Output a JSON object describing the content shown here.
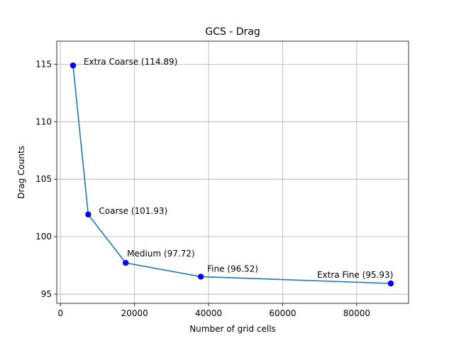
{
  "chart_data": {
    "type": "line",
    "title": "GCS - Drag",
    "xlabel": "Number of grid cells",
    "ylabel": "Drag Counts",
    "xlim": [
      -1000,
      94000
    ],
    "ylim": [
      94.2,
      117
    ],
    "xticks": [
      0,
      20000,
      40000,
      60000,
      80000
    ],
    "yticks": [
      95,
      100,
      105,
      110,
      115
    ],
    "grid": true,
    "line_color": "#1f77b4",
    "marker_color": "#0000ff",
    "series": [
      {
        "x": [
          3400,
          7500,
          17600,
          37900,
          89200
        ],
        "y": [
          114.89,
          101.93,
          97.72,
          96.52,
          95.93
        ]
      }
    ],
    "annotations": [
      {
        "text": "Extra Coarse (114.89)",
        "x": 3400,
        "y": 114.89
      },
      {
        "text": "Coarse (101.93)",
        "x": 7500,
        "y": 101.93
      },
      {
        "text": "Medium (97.72)",
        "x": 17600,
        "y": 97.72
      },
      {
        "text": "Fine (96.52)",
        "x": 37900,
        "y": 96.52
      },
      {
        "text": "Extra Fine (95.93)",
        "x": 89200,
        "y": 95.93
      }
    ]
  }
}
